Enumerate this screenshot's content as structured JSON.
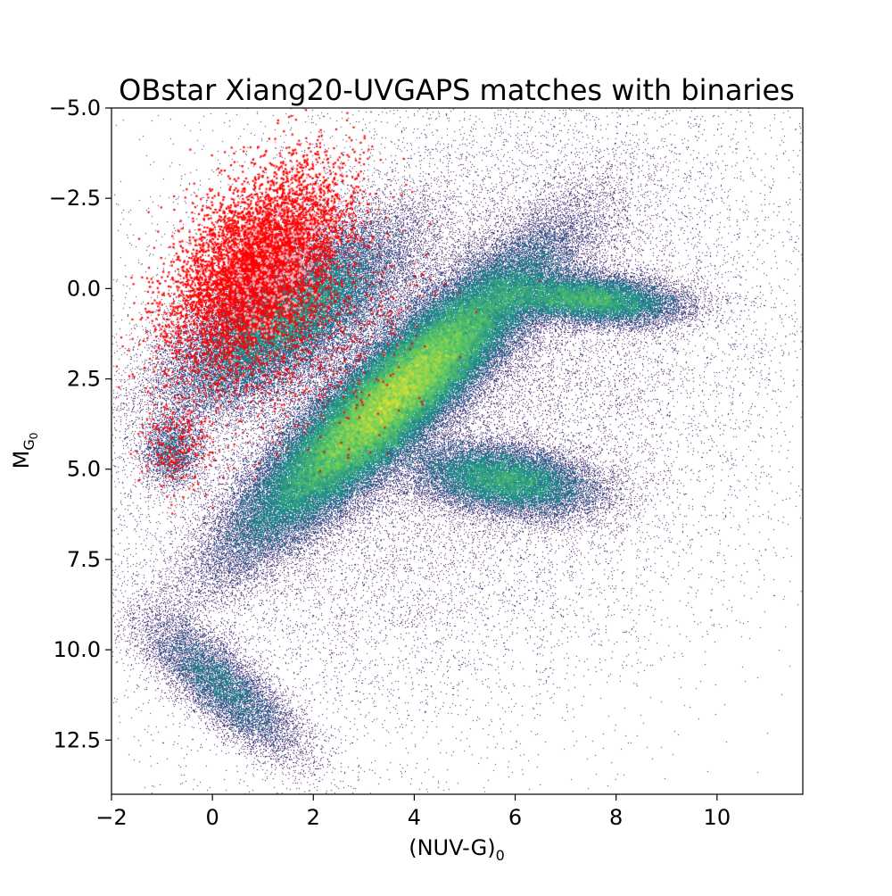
{
  "chart_data": {
    "type": "scatter",
    "title": "OBstar Xiang20-UVGAPS matches with binaries",
    "xlabel": "(NUV-G)",
    "xlabel_sub": "0",
    "ylabel": "M",
    "ylabel_sub": "G",
    "ylabel_subsub": "0",
    "xlim": [
      -2,
      11.7
    ],
    "ylim": [
      14,
      -5
    ],
    "y_inverted": true,
    "grid": false,
    "legend": "none",
    "x_ticks": [
      -2,
      0,
      2,
      4,
      6,
      8,
      10
    ],
    "x_tick_labels": [
      "−2",
      "0",
      "2",
      "4",
      "6",
      "8",
      "10"
    ],
    "y_ticks": [
      -5,
      -2.5,
      0,
      2.5,
      5,
      7.5,
      10,
      12.5
    ],
    "y_tick_labels": [
      "−5.0",
      "−2.5",
      "0.0",
      "2.5",
      "5.0",
      "7.5",
      "10.0",
      "12.5"
    ],
    "colors": {
      "density_low": "#440154",
      "density_mid_low": "#31688e",
      "density_mid": "#21918c",
      "density_mid_high": "#5ec962",
      "density_high": "#fde725",
      "ob_matches": "#ff0000",
      "binaries": "#ffb6c1"
    },
    "series": [
      {
        "kind": "density",
        "components": [
          {
            "cx": 3.6,
            "cy": 3.0,
            "sx": 1.5,
            "sy": 2.0,
            "rho": -0.9,
            "weight": 0.55
          },
          {
            "cx": 1.5,
            "cy": 0.8,
            "sx": 1.2,
            "sy": 1.3,
            "rho": -0.7,
            "weight": 0.15
          },
          {
            "cx": 5.8,
            "cy": 5.3,
            "sx": 0.9,
            "sy": 0.5,
            "rho": 0.3,
            "weight": 0.08
          },
          {
            "cx": 7.5,
            "cy": 0.3,
            "sx": 0.9,
            "sy": 0.35,
            "rho": 0.2,
            "weight": 0.07
          },
          {
            "cx": 0.2,
            "cy": 11.0,
            "sx": 0.8,
            "sy": 1.0,
            "rho": 0.8,
            "weight": 0.04
          },
          {
            "cx": -0.8,
            "cy": 4.5,
            "sx": 0.3,
            "sy": 0.5,
            "rho": 0.0,
            "weight": 0.01
          },
          {
            "cx": 4.5,
            "cy": 3.0,
            "sx": 3.5,
            "sy": 4.5,
            "rho": -0.3,
            "weight": 0.1
          }
        ]
      },
      {
        "kind": "ob_matches",
        "components": [
          {
            "cx": 0.9,
            "cy": -0.6,
            "sx": 0.85,
            "sy": 1.35,
            "rho": -0.45,
            "weight": 0.9
          },
          {
            "cx": -0.7,
            "cy": 4.3,
            "sx": 0.35,
            "sy": 0.6,
            "rho": 0.0,
            "weight": 0.03
          },
          {
            "cx": 2.0,
            "cy": 1.8,
            "sx": 1.2,
            "sy": 1.4,
            "rho": -0.4,
            "weight": 0.07
          }
        ]
      },
      {
        "kind": "binaries",
        "components": [
          {
            "cx": 1.2,
            "cy": -0.4,
            "sx": 0.6,
            "sy": 1.1,
            "rho": -0.4,
            "weight": 1.0
          }
        ]
      }
    ]
  }
}
